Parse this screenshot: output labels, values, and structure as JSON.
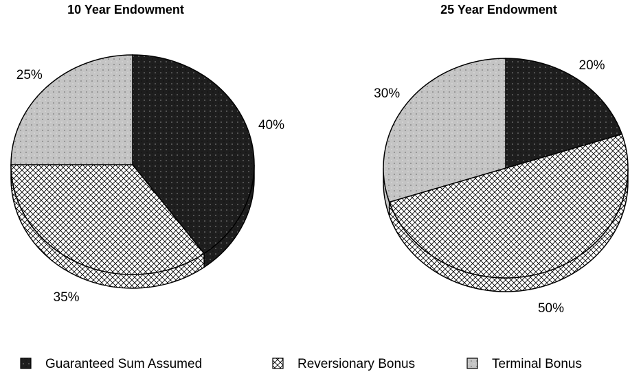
{
  "chart_data": [
    {
      "type": "pie",
      "title": "10 Year Endowment",
      "categories": [
        "Guaranteed Sum Assumed",
        "Reversionary Bonus",
        "Terminal Bonus"
      ],
      "values": [
        40,
        35,
        25
      ],
      "value_labels": [
        "40%",
        "35%",
        "25%"
      ],
      "colors": [
        "#1e1e1e",
        "#ffffff",
        "#c4c4c4"
      ],
      "hatch": [
        false,
        true,
        false
      ]
    },
    {
      "type": "pie",
      "title": "25 Year Endowment",
      "categories": [
        "Guaranteed Sum Assumed",
        "Reversionary Bonus",
        "Terminal Bonus"
      ],
      "values": [
        20,
        50,
        30
      ],
      "value_labels": [
        "20%",
        "50%",
        "30%"
      ],
      "colors": [
        "#1e1e1e",
        "#ffffff",
        "#c4c4c4"
      ],
      "hatch": [
        false,
        true,
        false
      ]
    }
  ]
}
